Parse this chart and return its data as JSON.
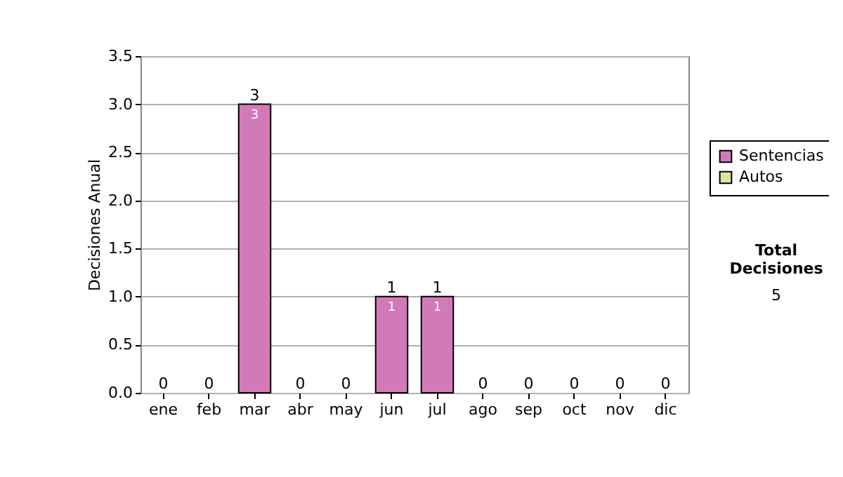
{
  "chart_data": {
    "type": "bar",
    "ylabel": "Decisiones Anual",
    "categories": [
      "ene",
      "feb",
      "mar",
      "abr",
      "may",
      "jun",
      "jul",
      "ago",
      "sep",
      "oct",
      "nov",
      "dic"
    ],
    "series": [
      {
        "name": "Sentencias",
        "color": "#d27ab8",
        "values": [
          0,
          0,
          3,
          0,
          0,
          1,
          1,
          0,
          0,
          0,
          0,
          0
        ],
        "value_labels": [
          null,
          null,
          "3",
          null,
          null,
          "1",
          "1",
          null,
          null,
          null,
          null,
          null
        ]
      },
      {
        "name": "Autos",
        "color": "#d8e6a0",
        "values": [
          0,
          0,
          0,
          0,
          0,
          0,
          0,
          0,
          0,
          0,
          0,
          0
        ],
        "value_labels": [
          null,
          null,
          null,
          null,
          null,
          null,
          null,
          null,
          null,
          null,
          null,
          null
        ]
      }
    ],
    "stacked": true,
    "totals": [
      "0",
      "0",
      "3",
      "0",
      "0",
      "1",
      "1",
      "0",
      "0",
      "0",
      "0",
      "0"
    ],
    "ylim": [
      0,
      3.5
    ],
    "yticks": [
      {
        "value": 0,
        "label": "0.0"
      },
      {
        "value": 0.5,
        "label": "0.5"
      },
      {
        "value": 1,
        "label": "1.0"
      },
      {
        "value": 1.5,
        "label": "1.5"
      },
      {
        "value": 2,
        "label": "2.0"
      },
      {
        "value": 2.5,
        "label": "2.5"
      },
      {
        "value": 3,
        "label": "3.0"
      },
      {
        "value": 3.5,
        "label": "3.5"
      }
    ],
    "grid": "y",
    "legend": "right",
    "annotations": [
      "Total Decisiones",
      "5"
    ]
  }
}
